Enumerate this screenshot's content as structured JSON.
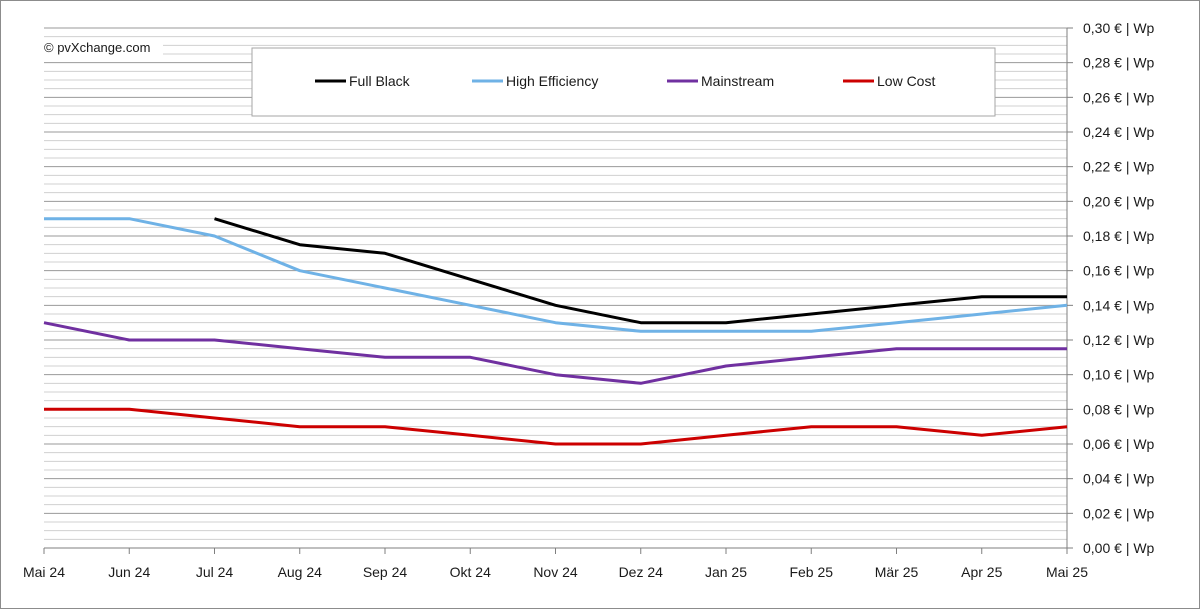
{
  "copyright": "© pvXchange.com",
  "chart_data": {
    "type": "line",
    "categories": [
      "Mai 24",
      "Jun 24",
      "Jul 24",
      "Aug 24",
      "Sep 24",
      "Okt 24",
      "Nov 24",
      "Dez 24",
      "Jan 25",
      "Feb 25",
      "Mär 25",
      "Apr 25",
      "Mai 25"
    ],
    "series": [
      {
        "name": "Full Black",
        "color": "#000000",
        "values": [
          null,
          null,
          0.19,
          0.175,
          0.17,
          0.155,
          0.14,
          0.13,
          0.13,
          0.135,
          0.14,
          0.145,
          0.145
        ]
      },
      {
        "name": "High Efficiency",
        "color": "#6fb2e6",
        "values": [
          0.19,
          0.19,
          0.18,
          0.16,
          0.15,
          0.14,
          0.13,
          0.125,
          0.125,
          0.125,
          0.13,
          0.135,
          0.14
        ]
      },
      {
        "name": "Mainstream",
        "color": "#7030a0",
        "values": [
          0.13,
          0.12,
          0.12,
          0.115,
          0.11,
          0.11,
          0.1,
          0.095,
          0.105,
          0.11,
          0.115,
          0.115,
          0.115
        ]
      },
      {
        "name": "Low Cost",
        "color": "#cc0000",
        "values": [
          0.08,
          0.08,
          0.075,
          0.07,
          0.07,
          0.065,
          0.06,
          0.06,
          0.065,
          0.07,
          0.07,
          0.065,
          0.07
        ]
      }
    ],
    "y_tick_labels": [
      "0,00 € | Wp",
      "0,02 € | Wp",
      "0,04 € | Wp",
      "0,06 € | Wp",
      "0,08 € | Wp",
      "0,10 € | Wp",
      "0,12 € | Wp",
      "0,14 € | Wp",
      "0,16 € | Wp",
      "0,18 € | Wp",
      "0,20 € | Wp",
      "0,22 € | Wp",
      "0,24 € | Wp",
      "0,26 € | Wp",
      "0,28 € | Wp",
      "0,30 € | Wp"
    ],
    "ylim": [
      0,
      0.3
    ],
    "y_major_step": 0.02,
    "y_minor_step": 0.005,
    "grid": true,
    "legend_position": "top",
    "title": "",
    "xlabel": "",
    "ylabel": ""
  }
}
